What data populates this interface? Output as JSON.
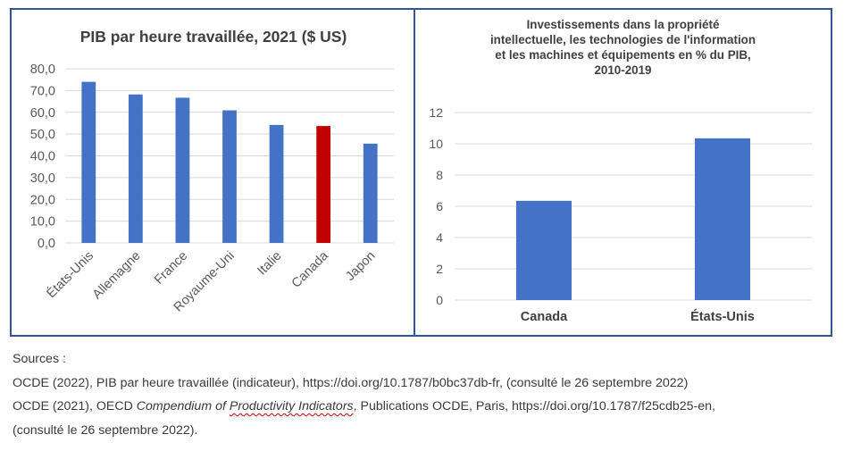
{
  "chart_data": [
    {
      "type": "bar",
      "title": "PIB par heure travaillée, 2021 ($ US)",
      "categories": [
        "États-Unis",
        "Allemagne",
        "France",
        "Royaume-Uni",
        "Italie",
        "Canada",
        "Japon"
      ],
      "values": [
        74.0,
        68.2,
        66.7,
        60.9,
        54.2,
        53.7,
        45.6
      ],
      "bar_colors": [
        "#4472c4",
        "#4472c4",
        "#4472c4",
        "#4472c4",
        "#4472c4",
        "#c00000",
        "#4472c4"
      ],
      "ylim": [
        0,
        80
      ],
      "yticks": [
        "0,0",
        "10,0",
        "20,0",
        "30,0",
        "40,0",
        "50,0",
        "60,0",
        "70,0",
        "80,0"
      ],
      "xlabel": "",
      "ylabel": "",
      "grid": true,
      "tick_label_rotation": "-45deg"
    },
    {
      "type": "bar",
      "title_lines": [
        "Investissements  dans la propriété",
        "intellectuelle,  les technologies de l'information",
        "et les machines  et équipements  en % du PIB,",
        "2010-2019"
      ],
      "categories": [
        "Canada",
        "États-Unis"
      ],
      "values": [
        6.35,
        10.35
      ],
      "bar_colors": [
        "#4472c4",
        "#4472c4"
      ],
      "ylim": [
        0,
        12
      ],
      "yticks": [
        "0",
        "2",
        "4",
        "6",
        "8",
        "10",
        "12"
      ],
      "xlabel": "",
      "ylabel": "",
      "grid": true
    }
  ],
  "sources": {
    "heading": "Sources :",
    "line1": "OCDE (2022), PIB par heure travaillée (indicateur), https://doi.org/10.1787/b0bc37db-fr, (consulté le 26 septembre 2022)",
    "line2_start": "OCDE (2021), OECD ",
    "line2_italic_a": "Compendium of ",
    "line2_italic_wavy": "Productivity Indicators",
    "line2_end": ", Publications OCDE, Paris, https://doi.org/10.1787/f25cdb25-en,",
    "line3": "(consulté le 26 septembre 2022)."
  }
}
